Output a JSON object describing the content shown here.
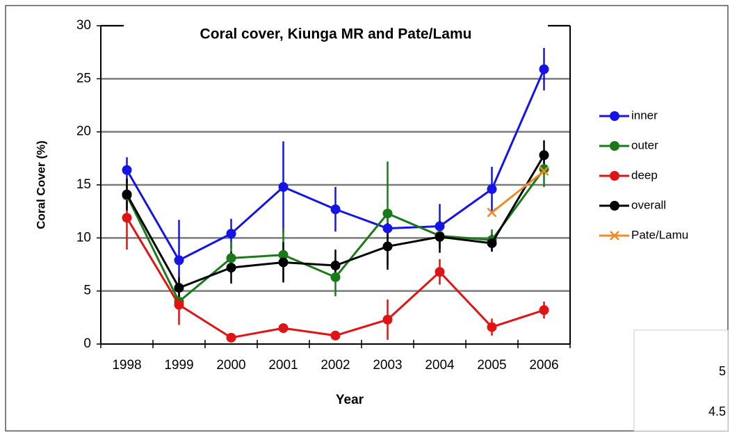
{
  "chart_data": {
    "type": "line",
    "title": "Coral cover, Kiunga MR and Pate/Lamu",
    "x_label": "Year",
    "y_label": "Coral Cover (%)",
    "categories": [
      "1998",
      "1999",
      "2000",
      "2001",
      "2002",
      "2003",
      "2004",
      "2005",
      "2006"
    ],
    "ylim": [
      0,
      30
    ],
    "yticks": [
      0,
      5,
      10,
      15,
      20,
      25,
      30
    ],
    "grid": true,
    "legend": "right",
    "series": [
      {
        "name": "inner",
        "color": "#1414e6",
        "marker": "circle",
        "values": [
          16.4,
          7.9,
          10.4,
          14.8,
          12.7,
          10.9,
          11.1,
          14.6,
          25.9
        ],
        "errors": [
          1.2,
          3.8,
          1.4,
          4.3,
          2.1,
          1.0,
          2.1,
          2.1,
          2.0
        ]
      },
      {
        "name": "outer",
        "color": "#1a7a1a",
        "marker": "circle",
        "values": [
          14.0,
          4.0,
          8.1,
          8.4,
          6.3,
          12.3,
          10.2,
          9.8,
          16.5
        ],
        "errors": [
          1.5,
          0.5,
          1.5,
          2.5,
          1.8,
          4.9,
          1.0,
          1.0,
          1.7
        ]
      },
      {
        "name": "deep",
        "color": "#e01414",
        "marker": "circle",
        "values": [
          11.9,
          3.7,
          0.6,
          1.5,
          0.8,
          2.3,
          6.8,
          1.6,
          3.2
        ],
        "errors": [
          3.0,
          1.9,
          0.3,
          0.3,
          0.3,
          1.9,
          1.2,
          0.8,
          0.8
        ]
      },
      {
        "name": "overall",
        "color": "#000000",
        "marker": "circle",
        "values": [
          14.1,
          5.3,
          7.2,
          7.7,
          7.4,
          9.2,
          10.1,
          9.5,
          17.8
        ],
        "errors": [
          1.5,
          1.0,
          1.5,
          1.9,
          1.5,
          2.2,
          1.5,
          0.8,
          1.4
        ]
      },
      {
        "name": "Pate/Lamu",
        "color": "#f08a24",
        "marker": "x",
        "values": [
          null,
          null,
          null,
          null,
          null,
          null,
          null,
          12.4,
          16.3
        ]
      }
    ]
  },
  "fragment": {
    "labels": [
      "5",
      "4.5"
    ]
  }
}
